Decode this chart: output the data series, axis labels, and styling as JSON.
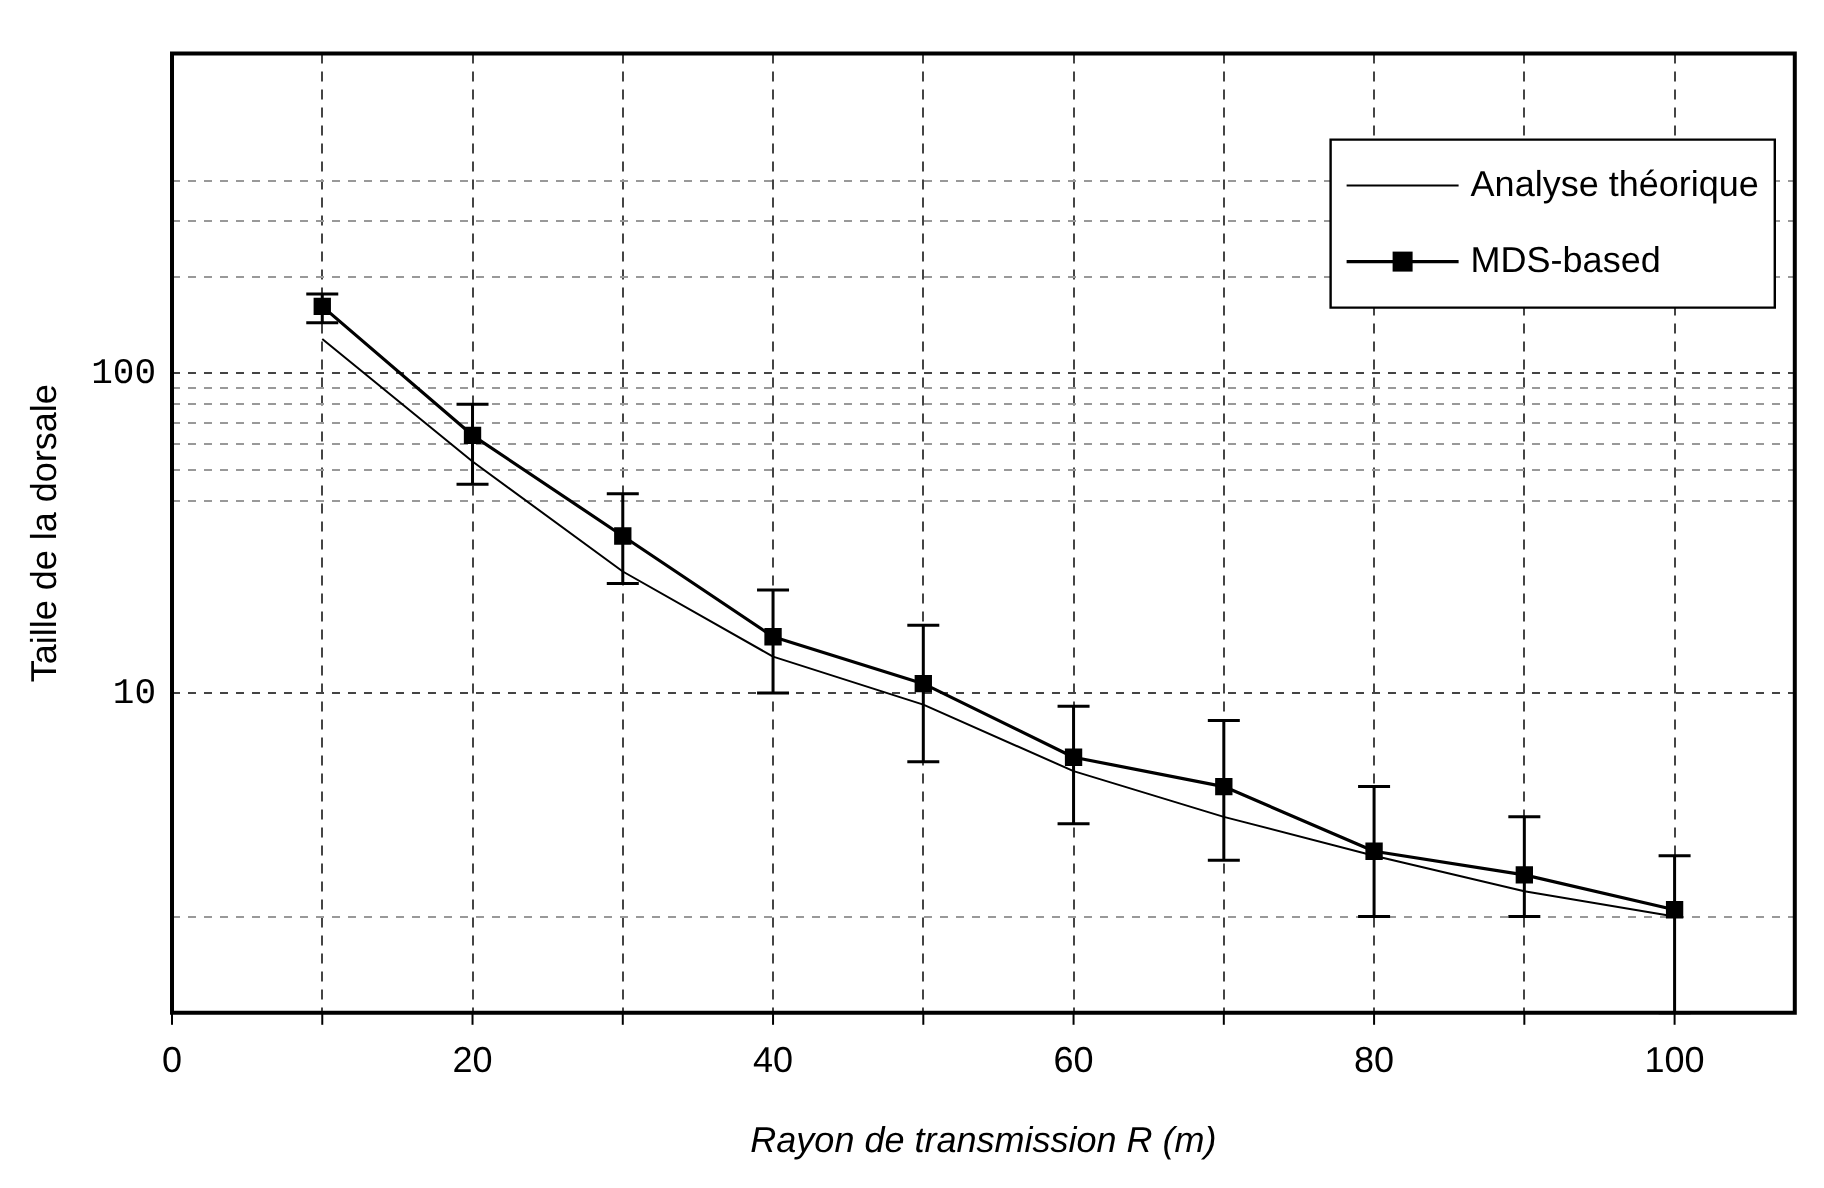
{
  "chart_data": {
    "type": "line",
    "xlabel": "Rayon de transmission R (m)",
    "ylabel": "Taille de la dorsale",
    "x": [
      10,
      20,
      30,
      40,
      50,
      60,
      70,
      80,
      90,
      100
    ],
    "series": [
      {
        "name": "Analyse théorique",
        "color": "#000000",
        "marker": "none",
        "values": [
          128,
          53,
          24,
          13,
          9.2,
          5.7,
          4.1,
          3.1,
          2.4,
          2.0
        ]
      },
      {
        "name": "MDS-based",
        "color": "#000000",
        "marker": "square",
        "values": [
          162,
          64,
          31,
          15,
          10.7,
          6.3,
          5.1,
          3.2,
          2.7,
          2.1
        ],
        "errors": [
          [
            144,
            177
          ],
          [
            45,
            80
          ],
          [
            22,
            42
          ],
          [
            10,
            21
          ],
          [
            6.1,
            16.3
          ],
          [
            3.9,
            9.1
          ],
          [
            3.0,
            8.2
          ],
          [
            2.0,
            5.1
          ],
          [
            2.0,
            4.1
          ],
          [
            1.0,
            3.1
          ]
        ]
      }
    ],
    "log": "y",
    "xlim": [
      0,
      108
    ],
    "ylim": [
      1,
      1000
    ],
    "xticks": [
      0,
      {
        "value": 10,
        "label": null
      },
      20,
      {
        "value": 30,
        "label": null
      },
      40,
      {
        "value": 50,
        "label": null
      },
      60,
      {
        "value": 70,
        "label": null
      },
      80,
      {
        "value": 90,
        "label": null
      },
      100
    ],
    "yticks": [
      {
        "value": 2,
        "label": null
      },
      10,
      {
        "value": 40,
        "label": null
      },
      {
        "value": 50,
        "label": null
      },
      {
        "value": 60,
        "label": null
      },
      {
        "value": 70,
        "label": null
      },
      {
        "value": 80,
        "label": null
      },
      {
        "value": 90,
        "label": null
      },
      100,
      {
        "value": 200,
        "label": null
      },
      {
        "value": 300,
        "label": null
      },
      {
        "value": 400,
        "label": null
      }
    ],
    "grid": true,
    "legend": "top right",
    "line_style": "solid"
  }
}
